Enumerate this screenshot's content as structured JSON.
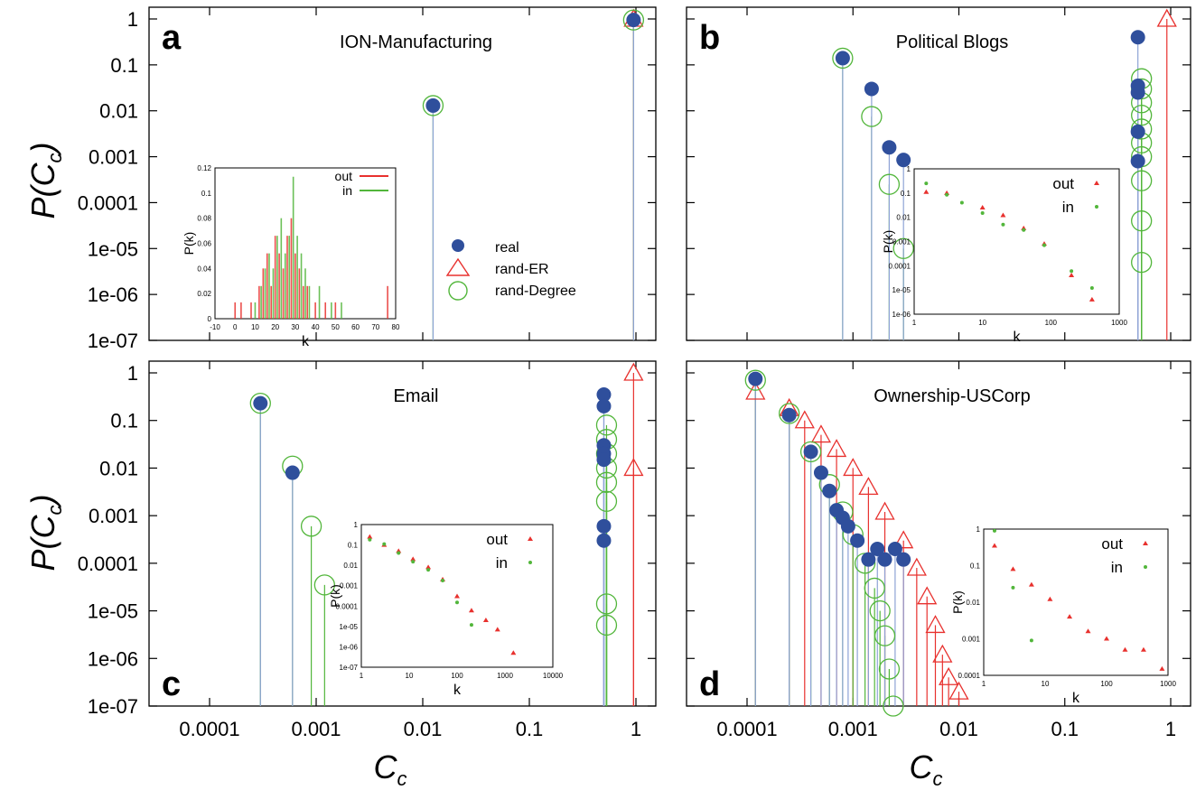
{
  "figure": {
    "ylabel_main": "P(C",
    "ylabel_sub": "c",
    "ylabel_close": ")",
    "xlabel_main": "C",
    "xlabel_sub": "c",
    "legend": [
      {
        "label": "real",
        "marker": "filled-circle",
        "color": "#2f4f9c"
      },
      {
        "label": "rand-ER",
        "marker": "triangle",
        "color": "#e8312e"
      },
      {
        "label": "rand-Degree",
        "marker": "open-circle",
        "color": "#52b63b"
      }
    ],
    "colors": {
      "real": "#2f4f9c",
      "stem_real": "#8ea3d6",
      "er": "#e8312e",
      "deg": "#52b63b"
    }
  },
  "chart_data": [
    {
      "panel_letter": "a",
      "title": "ION-Manufacturing",
      "type": "scatter",
      "xscale": "log",
      "yscale": "log",
      "xlim": [
        0.0001,
        1.5
      ],
      "ylim": [
        1e-07,
        1.5
      ],
      "y_ticks": [
        "1",
        "0.1",
        "0.01",
        "0.001",
        "0.0001",
        "1e-05",
        "1e-06",
        "1e-07"
      ],
      "x_ticks": [],
      "series": [
        {
          "name": "real",
          "points": [
            [
              0.0125,
              0.013
            ],
            [
              0.95,
              0.95
            ]
          ]
        },
        {
          "name": "rand-ER",
          "points": [
            [
              0.95,
              1.0
            ]
          ]
        },
        {
          "name": "rand-Degree",
          "points": [
            [
              0.0125,
              0.013
            ],
            [
              0.95,
              0.95
            ]
          ]
        }
      ],
      "inset": {
        "type": "bar",
        "xlabel": "k",
        "ylabel": "P(k)",
        "x_ticks": [
          "-10",
          "0",
          "10",
          "20",
          "30",
          "40",
          "50",
          "60",
          "70",
          "80"
        ],
        "y_ticks": [
          "0",
          "0.02",
          "0.04",
          "0.06",
          "0.08",
          "0.1",
          "0.12"
        ],
        "series": [
          {
            "name": "out",
            "values": [
              [
                0,
                0.013
              ],
              [
                3,
                0.013
              ],
              [
                8,
                0.013
              ],
              [
                12,
                0.026
              ],
              [
                14,
                0.04
              ],
              [
                16,
                0.052
              ],
              [
                18,
                0.026
              ],
              [
                20,
                0.066
              ],
              [
                22,
                0.052
              ],
              [
                24,
                0.04
              ],
              [
                26,
                0.066
              ],
              [
                28,
                0.08
              ],
              [
                30,
                0.052
              ],
              [
                32,
                0.04
              ],
              [
                34,
                0.026
              ],
              [
                36,
                0.026
              ],
              [
                40,
                0.013
              ],
              [
                45,
                0.013
              ],
              [
                50,
                0.013
              ],
              [
                76,
                0.026
              ]
            ]
          },
          {
            "name": "in",
            "values": [
              [
                10,
                0.013
              ],
              [
                13,
                0.026
              ],
              [
                15,
                0.04
              ],
              [
                17,
                0.052
              ],
              [
                19,
                0.04
              ],
              [
                21,
                0.066
              ],
              [
                23,
                0.08
              ],
              [
                25,
                0.052
              ],
              [
                27,
                0.066
              ],
              [
                29,
                0.113
              ],
              [
                31,
                0.066
              ],
              [
                33,
                0.052
              ],
              [
                35,
                0.04
              ],
              [
                37,
                0.026
              ],
              [
                42,
                0.026
              ],
              [
                48,
                0.013
              ],
              [
                53,
                0.013
              ]
            ]
          }
        ]
      }
    },
    {
      "panel_letter": "b",
      "title": "Political Blogs",
      "type": "scatter",
      "xscale": "log",
      "yscale": "log",
      "xlim": [
        0.0001,
        1.5
      ],
      "ylim": [
        1e-07,
        1.5
      ],
      "y_ticks": [],
      "x_ticks": [],
      "series": [
        {
          "name": "real",
          "points": [
            [
              0.0008,
              0.14
            ],
            [
              0.0015,
              0.03
            ],
            [
              0.0022,
              0.0016
            ],
            [
              0.003,
              0.00085
            ],
            [
              0.49,
              0.4
            ],
            [
              0.49,
              0.035
            ],
            [
              0.49,
              0.025
            ],
            [
              0.49,
              0.0035
            ],
            [
              0.49,
              0.0008
            ]
          ]
        },
        {
          "name": "rand-ER",
          "points": [
            [
              0.92,
              1.0
            ]
          ]
        },
        {
          "name": "rand-Degree",
          "points": [
            [
              0.0008,
              0.14
            ],
            [
              0.0015,
              0.0075
            ],
            [
              0.0022,
              0.00025
            ],
            [
              0.003,
              1e-05
            ],
            [
              0.53,
              0.05
            ],
            [
              0.53,
              0.03
            ],
            [
              0.53,
              0.015
            ],
            [
              0.53,
              0.008
            ],
            [
              0.53,
              0.004
            ],
            [
              0.53,
              0.002
            ],
            [
              0.53,
              0.001
            ],
            [
              0.53,
              0.0003
            ],
            [
              0.53,
              4e-05
            ],
            [
              0.53,
              5e-06
            ]
          ]
        }
      ],
      "inset": {
        "type": "scatter",
        "xlabel": "k",
        "ylabel": "P(k)",
        "x_ticks": [
          "1",
          "10",
          "100",
          "1000"
        ],
        "y_ticks": [
          "1",
          "0.1",
          "0.01",
          "0.001",
          "0.0001",
          "1e-05",
          "1e-06"
        ],
        "series": [
          {
            "name": "out",
            "points": [
              [
                1.5,
                0.11
              ],
              [
                3,
                0.1
              ],
              [
                10,
                0.025
              ],
              [
                20,
                0.012
              ],
              [
                40,
                0.0035
              ],
              [
                80,
                0.0008
              ],
              [
                200,
                4e-05
              ],
              [
                400,
                4e-06
              ]
            ]
          },
          {
            "name": "in",
            "points": [
              [
                1.5,
                0.25
              ],
              [
                3,
                0.085
              ],
              [
                5,
                0.04
              ],
              [
                10,
                0.015
              ],
              [
                20,
                0.005
              ],
              [
                40,
                0.003
              ],
              [
                80,
                0.0007
              ],
              [
                200,
                6e-05
              ],
              [
                400,
                1.2e-05
              ]
            ]
          }
        ]
      }
    },
    {
      "panel_letter": "c",
      "title": "Email",
      "type": "scatter",
      "xscale": "log",
      "yscale": "log",
      "xlim": [
        0.0001,
        1.5
      ],
      "ylim": [
        1e-07,
        1.5
      ],
      "y_ticks": [
        "1",
        "0.1",
        "0.01",
        "0.001",
        "0.0001",
        "1e-05",
        "1e-06",
        "1e-07"
      ],
      "x_ticks": [
        "0.0001",
        "0.001",
        "0.01",
        "0.1",
        "1"
      ],
      "series": [
        {
          "name": "real",
          "points": [
            [
              0.0003,
              0.23
            ],
            [
              0.0006,
              0.008
            ],
            [
              0.5,
              0.35
            ],
            [
              0.5,
              0.2
            ],
            [
              0.5,
              0.03
            ],
            [
              0.5,
              0.02
            ],
            [
              0.5,
              0.015
            ],
            [
              0.5,
              0.0006
            ],
            [
              0.5,
              0.0003
            ]
          ]
        },
        {
          "name": "rand-ER",
          "points": [
            [
              0.95,
              1.0
            ],
            [
              0.95,
              0.01
            ]
          ]
        },
        {
          "name": "rand-Degree",
          "points": [
            [
              0.0003,
              0.23
            ],
            [
              0.0006,
              0.011
            ],
            [
              0.0009,
              0.0006
            ],
            [
              0.0012,
              3.5e-05
            ],
            [
              0.53,
              0.08
            ],
            [
              0.53,
              0.04
            ],
            [
              0.53,
              0.02
            ],
            [
              0.53,
              0.01
            ],
            [
              0.53,
              0.005
            ],
            [
              0.53,
              0.002
            ],
            [
              0.53,
              1.4e-05
            ],
            [
              0.53,
              5e-06
            ]
          ]
        }
      ],
      "inset": {
        "type": "scatter",
        "xlabel": "k",
        "ylabel": "P(k)",
        "x_ticks": [
          "1",
          "10",
          "100",
          "1000",
          "10000"
        ],
        "y_ticks": [
          "1",
          "0.1",
          "0.01",
          "0.001",
          "0.0001",
          "1e-05",
          "1e-06",
          "1e-07"
        ],
        "series": [
          {
            "name": "out",
            "points": [
              [
                1.5,
                0.25
              ],
              [
                3,
                0.1
              ],
              [
                6,
                0.05
              ],
              [
                12,
                0.02
              ],
              [
                25,
                0.008
              ],
              [
                50,
                0.002
              ],
              [
                100,
                0.0003
              ],
              [
                200,
                6e-05
              ],
              [
                400,
                2e-05
              ],
              [
                700,
                7e-06
              ],
              [
                1500,
                5e-07
              ]
            ]
          },
          {
            "name": "in",
            "points": [
              [
                1.5,
                0.18
              ],
              [
                3,
                0.11
              ],
              [
                6,
                0.04
              ],
              [
                12,
                0.015
              ],
              [
                25,
                0.006
              ],
              [
                50,
                0.0018
              ],
              [
                100,
                0.00015
              ],
              [
                200,
                1.2e-05
              ]
            ]
          }
        ]
      }
    },
    {
      "panel_letter": "d",
      "title": "Ownership-USCorp",
      "type": "scatter",
      "xscale": "log",
      "yscale": "log",
      "xlim": [
        0.0001,
        1.5
      ],
      "ylim": [
        1e-07,
        1.5
      ],
      "y_ticks": [],
      "x_ticks": [
        "0.0001",
        "0.001",
        "0.01",
        "0.1",
        "1"
      ],
      "series": [
        {
          "name": "real",
          "points": [
            [
              0.00012,
              0.75
            ],
            [
              0.00025,
              0.13
            ],
            [
              0.0004,
              0.022
            ],
            [
              0.0005,
              0.008
            ],
            [
              0.0006,
              0.0033
            ],
            [
              0.0007,
              0.0013
            ],
            [
              0.0008,
              0.0009
            ],
            [
              0.0009,
              0.0006
            ],
            [
              0.0011,
              0.0003
            ],
            [
              0.0014,
              0.00012
            ],
            [
              0.0017,
              0.0002
            ],
            [
              0.002,
              0.00012
            ],
            [
              0.0025,
              0.0002
            ],
            [
              0.003,
              0.00012
            ]
          ]
        },
        {
          "name": "rand-ER",
          "points": [
            [
              0.00012,
              0.4
            ],
            [
              0.00025,
              0.18
            ],
            [
              0.00035,
              0.1
            ],
            [
              0.0005,
              0.05
            ],
            [
              0.0007,
              0.025
            ],
            [
              0.001,
              0.01
            ],
            [
              0.0014,
              0.004
            ],
            [
              0.002,
              0.0012
            ],
            [
              0.003,
              0.0003
            ],
            [
              0.004,
              8e-05
            ],
            [
              0.005,
              2e-05
            ],
            [
              0.006,
              5e-06
            ],
            [
              0.007,
              1.2e-06
            ],
            [
              0.008,
              4e-07
            ],
            [
              0.01,
              2e-07
            ]
          ]
        },
        {
          "name": "rand-Degree",
          "points": [
            [
              0.00012,
              0.7
            ],
            [
              0.00025,
              0.14
            ],
            [
              0.0004,
              0.022
            ],
            [
              0.0006,
              0.0045
            ],
            [
              0.0008,
              0.0012
            ],
            [
              0.001,
              0.0004
            ],
            [
              0.0013,
              0.0001
            ],
            [
              0.0016,
              3e-05
            ],
            [
              0.0018,
              1e-05
            ],
            [
              0.002,
              3e-06
            ],
            [
              0.0022,
              6e-07
            ],
            [
              0.0024,
              1e-07
            ]
          ]
        }
      ],
      "inset": {
        "type": "scatter",
        "xlabel": "k",
        "ylabel": "P(k)",
        "x_ticks": [
          "1",
          "10",
          "100",
          "1000"
        ],
        "y_ticks": [
          "1",
          "0.1",
          "0.01",
          "0.001",
          "0.0001"
        ],
        "series": [
          {
            "name": "out",
            "points": [
              [
                1.5,
                0.35
              ],
              [
                3,
                0.08
              ],
              [
                6,
                0.03
              ],
              [
                12,
                0.012
              ],
              [
                25,
                0.004
              ],
              [
                50,
                0.0016
              ],
              [
                100,
                0.001
              ],
              [
                200,
                0.0005
              ],
              [
                400,
                0.0005
              ],
              [
                800,
                0.00015
              ]
            ]
          },
          {
            "name": "in",
            "points": [
              [
                1.5,
                0.9
              ],
              [
                3,
                0.025
              ],
              [
                6,
                0.0009
              ]
            ]
          }
        ]
      }
    }
  ]
}
